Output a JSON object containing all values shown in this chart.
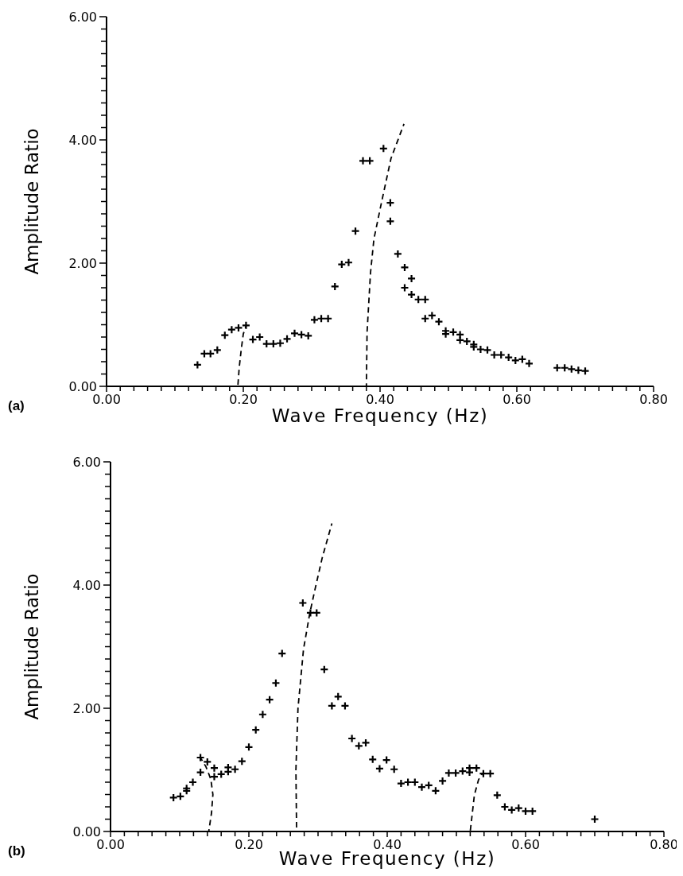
{
  "chart_data": [
    {
      "type": "scatter",
      "xlabel": "Wave Frequency (Hz)",
      "ylabel": "Amplitude Ratio",
      "annotations": [
        "(a)"
      ],
      "marker": "cross",
      "xlim": [
        0,
        0.8
      ],
      "ylim": [
        0,
        6
      ],
      "xticks": [
        {
          "value": 0,
          "label": "0.00"
        },
        {
          "value": 0.02,
          "label": null
        },
        {
          "value": 0.04,
          "label": null
        },
        {
          "value": 0.06,
          "label": null
        },
        {
          "value": 0.08,
          "label": null
        },
        {
          "value": 0.1,
          "label": null
        },
        {
          "value": 0.12,
          "label": null
        },
        {
          "value": 0.14,
          "label": null
        },
        {
          "value": 0.16,
          "label": null
        },
        {
          "value": 0.18,
          "label": null
        },
        {
          "value": 0.2,
          "label": "0.20"
        },
        {
          "value": 0.22,
          "label": null
        },
        {
          "value": 0.24,
          "label": null
        },
        {
          "value": 0.26,
          "label": null
        },
        {
          "value": 0.28,
          "label": null
        },
        {
          "value": 0.3,
          "label": null
        },
        {
          "value": 0.32,
          "label": null
        },
        {
          "value": 0.34,
          "label": null
        },
        {
          "value": 0.36,
          "label": null
        },
        {
          "value": 0.38,
          "label": null
        },
        {
          "value": 0.4,
          "label": "0.40"
        },
        {
          "value": 0.42,
          "label": null
        },
        {
          "value": 0.44,
          "label": null
        },
        {
          "value": 0.46,
          "label": null
        },
        {
          "value": 0.48,
          "label": null
        },
        {
          "value": 0.5,
          "label": null
        },
        {
          "value": 0.52,
          "label": null
        },
        {
          "value": 0.54,
          "label": null
        },
        {
          "value": 0.56,
          "label": null
        },
        {
          "value": 0.58,
          "label": null
        },
        {
          "value": 0.6,
          "label": "0.60"
        },
        {
          "value": 0.62,
          "label": null
        },
        {
          "value": 0.64,
          "label": null
        },
        {
          "value": 0.66,
          "label": null
        },
        {
          "value": 0.68,
          "label": null
        },
        {
          "value": 0.7,
          "label": null
        },
        {
          "value": 0.72,
          "label": null
        },
        {
          "value": 0.74,
          "label": null
        },
        {
          "value": 0.76,
          "label": null
        },
        {
          "value": 0.78,
          "label": null
        },
        {
          "value": 0.8,
          "label": "0.80"
        }
      ],
      "yticks": [
        {
          "value": 0,
          "label": "0.00"
        },
        {
          "value": 0.2,
          "label": null
        },
        {
          "value": 0.4,
          "label": null
        },
        {
          "value": 0.6,
          "label": null
        },
        {
          "value": 0.8,
          "label": null
        },
        {
          "value": 1,
          "label": null
        },
        {
          "value": 1.2,
          "label": null
        },
        {
          "value": 1.4,
          "label": null
        },
        {
          "value": 1.6,
          "label": null
        },
        {
          "value": 1.8,
          "label": null
        },
        {
          "value": 2,
          "label": "2.00"
        },
        {
          "value": 2.2,
          "label": null
        },
        {
          "value": 2.4,
          "label": null
        },
        {
          "value": 2.6,
          "label": null
        },
        {
          "value": 2.8,
          "label": null
        },
        {
          "value": 3,
          "label": null
        },
        {
          "value": 3.2,
          "label": null
        },
        {
          "value": 3.4,
          "label": null
        },
        {
          "value": 3.6,
          "label": null
        },
        {
          "value": 3.8,
          "label": null
        },
        {
          "value": 4,
          "label": "4.00"
        },
        {
          "value": 4.2,
          "label": null
        },
        {
          "value": 4.4,
          "label": null
        },
        {
          "value": 4.6,
          "label": null
        },
        {
          "value": 4.8,
          "label": null
        },
        {
          "value": 5,
          "label": null
        },
        {
          "value": 5.2,
          "label": null
        },
        {
          "value": 5.4,
          "label": null
        },
        {
          "value": 5.6,
          "label": null
        },
        {
          "value": 5.8,
          "label": null
        },
        {
          "value": 6,
          "label": "6.00"
        }
      ],
      "series": [
        {
          "type": "scatter",
          "color": "#000000",
          "x": [
            0.133,
            0.143,
            0.152,
            0.162,
            0.173,
            0.183,
            0.193,
            0.204,
            0.214,
            0.224,
            0.234,
            0.244,
            0.254,
            0.264,
            0.275,
            0.285,
            0.295,
            0.304,
            0.314,
            0.324,
            0.334,
            0.344,
            0.354,
            0.364,
            0.375,
            0.385,
            0.405,
            0.415,
            0.415,
            0.426,
            0.436,
            0.446,
            0.436,
            0.446,
            0.456,
            0.466,
            0.466,
            0.476,
            0.486,
            0.496,
            0.496,
            0.507,
            0.517,
            0.517,
            0.527,
            0.537,
            0.537,
            0.547,
            0.557,
            0.567,
            0.577,
            0.588,
            0.598,
            0.608,
            0.618,
            0.659,
            0.67,
            0.68,
            0.69,
            0.7
          ],
          "values": [
            0.35,
            0.53,
            0.53,
            0.59,
            0.83,
            0.92,
            0.95,
            0.99,
            0.76,
            0.8,
            0.69,
            0.69,
            0.7,
            0.77,
            0.86,
            0.84,
            0.82,
            1.08,
            1.1,
            1.1,
            1.62,
            1.98,
            2.01,
            2.52,
            3.66,
            3.66,
            3.86,
            2.98,
            2.68,
            2.15,
            1.93,
            1.75,
            1.6,
            1.49,
            1.41,
            1.41,
            1.1,
            1.15,
            1.05,
            0.9,
            0.85,
            0.88,
            0.84,
            0.75,
            0.73,
            0.68,
            0.64,
            0.6,
            0.59,
            0.51,
            0.51,
            0.47,
            0.42,
            0.44,
            0.37,
            0.3,
            0.3,
            0.28,
            0.26,
            0.25
          ]
        },
        {
          "type": "line",
          "color": "#000000",
          "line_style": "dashed",
          "marker": "none",
          "x": [
            0.192,
            0.194,
            0.197,
            0.2,
            0.204
          ],
          "values": [
            0,
            0.3,
            0.6,
            0.85,
            0.98
          ]
        },
        {
          "type": "line",
          "color": "#000000",
          "line_style": "dashed",
          "marker": "none",
          "x": [
            0.38,
            0.381,
            0.386,
            0.391,
            0.402,
            0.416,
            0.435
          ],
          "values": [
            0,
            0.88,
            1.84,
            2.39,
            2.98,
            3.7,
            4.26
          ]
        }
      ]
    },
    {
      "type": "scatter",
      "xlabel": "Wave Frequency (Hz)",
      "ylabel": "Amplitude Ratio",
      "annotations": [
        "(b)"
      ],
      "marker": "cross",
      "xlim": [
        0,
        0.8
      ],
      "ylim": [
        0,
        6
      ],
      "xticks": [
        {
          "value": 0,
          "label": "0.00"
        },
        {
          "value": 0.02,
          "label": null
        },
        {
          "value": 0.04,
          "label": null
        },
        {
          "value": 0.06,
          "label": null
        },
        {
          "value": 0.08,
          "label": null
        },
        {
          "value": 0.1,
          "label": null
        },
        {
          "value": 0.12,
          "label": null
        },
        {
          "value": 0.14,
          "label": null
        },
        {
          "value": 0.16,
          "label": null
        },
        {
          "value": 0.18,
          "label": null
        },
        {
          "value": 0.2,
          "label": "0.20"
        },
        {
          "value": 0.22,
          "label": null
        },
        {
          "value": 0.24,
          "label": null
        },
        {
          "value": 0.26,
          "label": null
        },
        {
          "value": 0.28,
          "label": null
        },
        {
          "value": 0.3,
          "label": null
        },
        {
          "value": 0.32,
          "label": null
        },
        {
          "value": 0.34,
          "label": null
        },
        {
          "value": 0.36,
          "label": null
        },
        {
          "value": 0.38,
          "label": null
        },
        {
          "value": 0.4,
          "label": "0.40"
        },
        {
          "value": 0.42,
          "label": null
        },
        {
          "value": 0.44,
          "label": null
        },
        {
          "value": 0.46,
          "label": null
        },
        {
          "value": 0.48,
          "label": null
        },
        {
          "value": 0.5,
          "label": null
        },
        {
          "value": 0.52,
          "label": null
        },
        {
          "value": 0.54,
          "label": null
        },
        {
          "value": 0.56,
          "label": null
        },
        {
          "value": 0.58,
          "label": null
        },
        {
          "value": 0.6,
          "label": "0.60"
        },
        {
          "value": 0.62,
          "label": null
        },
        {
          "value": 0.64,
          "label": null
        },
        {
          "value": 0.66,
          "label": null
        },
        {
          "value": 0.68,
          "label": null
        },
        {
          "value": 0.7,
          "label": null
        },
        {
          "value": 0.72,
          "label": null
        },
        {
          "value": 0.74,
          "label": null
        },
        {
          "value": 0.76,
          "label": null
        },
        {
          "value": 0.78,
          "label": null
        },
        {
          "value": 0.8,
          "label": "0.80"
        }
      ],
      "yticks": [
        {
          "value": 0,
          "label": "0.00"
        },
        {
          "value": 0.2,
          "label": null
        },
        {
          "value": 0.4,
          "label": null
        },
        {
          "value": 0.6,
          "label": null
        },
        {
          "value": 0.8,
          "label": null
        },
        {
          "value": 1,
          "label": null
        },
        {
          "value": 1.2,
          "label": null
        },
        {
          "value": 1.4,
          "label": null
        },
        {
          "value": 1.6,
          "label": null
        },
        {
          "value": 1.8,
          "label": null
        },
        {
          "value": 2,
          "label": "2.00"
        },
        {
          "value": 2.2,
          "label": null
        },
        {
          "value": 2.4,
          "label": null
        },
        {
          "value": 2.6,
          "label": null
        },
        {
          "value": 2.8,
          "label": null
        },
        {
          "value": 3,
          "label": null
        },
        {
          "value": 3.2,
          "label": null
        },
        {
          "value": 3.4,
          "label": null
        },
        {
          "value": 3.6,
          "label": null
        },
        {
          "value": 3.8,
          "label": null
        },
        {
          "value": 4,
          "label": "4.00"
        },
        {
          "value": 4.2,
          "label": null
        },
        {
          "value": 4.4,
          "label": null
        },
        {
          "value": 4.6,
          "label": null
        },
        {
          "value": 4.8,
          "label": null
        },
        {
          "value": 5,
          "label": null
        },
        {
          "value": 5.2,
          "label": null
        },
        {
          "value": 5.4,
          "label": null
        },
        {
          "value": 5.6,
          "label": null
        },
        {
          "value": 5.8,
          "label": null
        },
        {
          "value": 6,
          "label": "6.00"
        }
      ],
      "series": [
        {
          "type": "scatter",
          "color": "#000000",
          "x": [
            0.091,
            0.101,
            0.11,
            0.11,
            0.119,
            0.13,
            0.13,
            0.14,
            0.15,
            0.15,
            0.16,
            0.17,
            0.17,
            0.18,
            0.19,
            0.2,
            0.21,
            0.22,
            0.23,
            0.239,
            0.248,
            0.278,
            0.289,
            0.298,
            0.309,
            0.32,
            0.329,
            0.339,
            0.349,
            0.359,
            0.369,
            0.379,
            0.389,
            0.399,
            0.41,
            0.42,
            0.43,
            0.44,
            0.45,
            0.46,
            0.47,
            0.48,
            0.489,
            0.499,
            0.509,
            0.519,
            0.519,
            0.529,
            0.539,
            0.549,
            0.559,
            0.57,
            0.58,
            0.59,
            0.6,
            0.61,
            0.7
          ],
          "values": [
            0.55,
            0.57,
            0.66,
            0.7,
            0.8,
            0.96,
            1.2,
            1.13,
            1.03,
            0.89,
            0.93,
            1.04,
            0.97,
            1.01,
            1.14,
            1.37,
            1.65,
            1.9,
            2.14,
            2.41,
            2.89,
            3.71,
            3.55,
            3.55,
            2.63,
            2.04,
            2.19,
            2.04,
            1.51,
            1.39,
            1.44,
            1.17,
            1.02,
            1.16,
            1.01,
            0.78,
            0.8,
            0.8,
            0.72,
            0.75,
            0.66,
            0.82,
            0.95,
            0.95,
            0.98,
            1.03,
            0.96,
            1.03,
            0.94,
            0.94,
            0.59,
            0.4,
            0.35,
            0.38,
            0.33,
            0.33,
            0.2
          ]
        },
        {
          "type": "line",
          "color": "#000000",
          "line_style": "dashed",
          "marker": "none",
          "x": [
            0.142,
            0.146,
            0.148,
            0.145,
            0.138,
            0.131
          ],
          "values": [
            0,
            0.3,
            0.6,
            0.85,
            1.05,
            1.18
          ]
        },
        {
          "type": "line",
          "color": "#000000",
          "line_style": "dashed",
          "marker": "none",
          "x": [
            0.269,
            0.268,
            0.271,
            0.279,
            0.288,
            0.296,
            0.306,
            0.32
          ],
          "values": [
            0,
            1.0,
            2.0,
            2.96,
            3.54,
            3.95,
            4.44,
            5.0
          ]
        },
        {
          "type": "line",
          "color": "#000000",
          "line_style": "dashed",
          "marker": "none",
          "x": [
            0.52,
            0.526,
            0.532,
            0.538
          ],
          "values": [
            0,
            0.59,
            0.84,
            0.95
          ]
        }
      ]
    }
  ]
}
